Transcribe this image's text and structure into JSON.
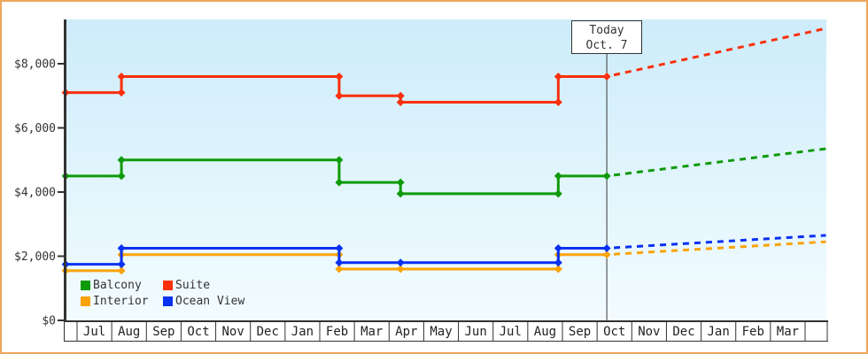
{
  "frame": {
    "border_color": "#eda65b"
  },
  "chart_data": {
    "type": "line",
    "style": "stepped price history (solid) with dashed forecast after today marker",
    "background_gradient": [
      "#cdecfa",
      "#f3fcff"
    ],
    "axis_color": "#333333",
    "y_axis": {
      "range": [
        0,
        9380
      ],
      "ticks": [
        {
          "label": "$0",
          "value": 0
        },
        {
          "label": "$2,000",
          "value": 2000
        },
        {
          "label": "$4,000",
          "value": 4000
        },
        {
          "label": "$6,000",
          "value": 6000
        },
        {
          "label": "$8,000",
          "value": 8000
        }
      ]
    },
    "x_axis": {
      "months": [
        "Jul",
        "Aug",
        "Sep",
        "Oct",
        "Nov",
        "Dec",
        "Jan",
        "Feb",
        "Mar",
        "Apr",
        "May",
        "Jun",
        "Jul",
        "Aug",
        "Sep",
        "Oct",
        "Nov",
        "Dec",
        "Jan",
        "Feb",
        "Mar"
      ],
      "start_offset": -0.33,
      "end_offset": 21.6
    },
    "today": {
      "label_line1": "Today",
      "label_line2": "Oct. 7",
      "month_offset": 15.28
    },
    "series": [
      {
        "name": "Balcony",
        "color": "#0f9a0a",
        "price_history": [
          {
            "month_offset": -0.33,
            "price": 4500
          },
          {
            "month_offset": 1.28,
            "price": 5000
          },
          {
            "month_offset": 7.56,
            "price": 4300
          },
          {
            "month_offset": 9.33,
            "price": 3950
          },
          {
            "month_offset": 13.88,
            "price": 4500
          }
        ],
        "price_today": 4500,
        "forecast_price_at_chart_end": 5350
      },
      {
        "name": "Suite",
        "color": "#fa2f0c",
        "price_history": [
          {
            "month_offset": -0.33,
            "price": 7100
          },
          {
            "month_offset": 1.28,
            "price": 7600
          },
          {
            "month_offset": 7.56,
            "price": 7000
          },
          {
            "month_offset": 9.33,
            "price": 6800
          },
          {
            "month_offset": 13.88,
            "price": 7600
          }
        ],
        "price_today": 7600,
        "forecast_price_at_chart_end": 9100
      },
      {
        "name": "Interior",
        "color": "#faa306",
        "price_history": [
          {
            "month_offset": -0.33,
            "price": 1550
          },
          {
            "month_offset": 1.28,
            "price": 2050
          },
          {
            "month_offset": 7.56,
            "price": 1600
          },
          {
            "month_offset": 9.33,
            "price": 1600
          },
          {
            "month_offset": 13.88,
            "price": 2050
          }
        ],
        "price_today": 2050,
        "forecast_price_at_chart_end": 2450
      },
      {
        "name": "Ocean View",
        "color": "#0831f2",
        "price_history": [
          {
            "month_offset": -0.33,
            "price": 1750
          },
          {
            "month_offset": 1.28,
            "price": 2250
          },
          {
            "month_offset": 7.56,
            "price": 1800
          },
          {
            "month_offset": 9.33,
            "price": 1800
          },
          {
            "month_offset": 13.88,
            "price": 2250
          }
        ],
        "price_today": 2250,
        "forecast_price_at_chart_end": 2650
      }
    ]
  }
}
